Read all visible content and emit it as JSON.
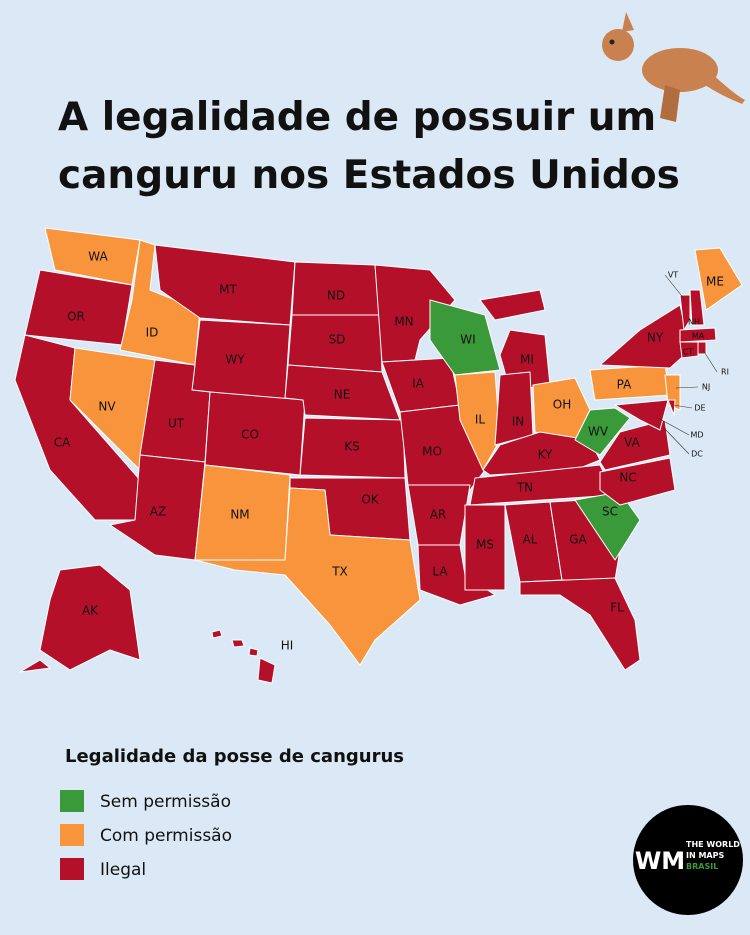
{
  "title": [
    "A legalidade de possuir um",
    "canguru nos Estados Unidos"
  ],
  "legend": {
    "title": "Legalidade da posse de cangurus",
    "items": [
      {
        "label": "Sem permissão",
        "color": "#3a9a3a"
      },
      {
        "label": "Com permissão",
        "color": "#f7943c"
      },
      {
        "label": "Ilegal",
        "color": "#b5102a"
      }
    ]
  },
  "states": [
    {
      "label": "WA",
      "category": 1
    },
    {
      "label": "OR",
      "category": 2
    },
    {
      "label": "CA",
      "category": 2
    },
    {
      "label": "NV",
      "category": 1
    },
    {
      "label": "ID",
      "category": 1
    },
    {
      "label": "MT",
      "category": 2
    },
    {
      "label": "WY",
      "category": 2
    },
    {
      "label": "UT",
      "category": 2
    },
    {
      "label": "CO",
      "category": 2
    },
    {
      "label": "AZ",
      "category": 2
    },
    {
      "label": "NM",
      "category": 1
    },
    {
      "label": "ND",
      "category": 2
    },
    {
      "label": "SD",
      "category": 2
    },
    {
      "label": "NE",
      "category": 2
    },
    {
      "label": "KS",
      "category": 2
    },
    {
      "label": "OK",
      "category": 2
    },
    {
      "label": "TX",
      "category": 1
    },
    {
      "label": "MN",
      "category": 2
    },
    {
      "label": "IA",
      "category": 2
    },
    {
      "label": "MO",
      "category": 2
    },
    {
      "label": "AR",
      "category": 2
    },
    {
      "label": "LA",
      "category": 2
    },
    {
      "label": "WI",
      "category": 0
    },
    {
      "label": "IL",
      "category": 1
    },
    {
      "label": "MI",
      "category": 2
    },
    {
      "label": "IN",
      "category": 2
    },
    {
      "label": "OH",
      "category": 1
    },
    {
      "label": "KY",
      "category": 2
    },
    {
      "label": "TN",
      "category": 2
    },
    {
      "label": "MS",
      "category": 2
    },
    {
      "label": "AL",
      "category": 2
    },
    {
      "label": "GA",
      "category": 2
    },
    {
      "label": "FL",
      "category": 2
    },
    {
      "label": "SC",
      "category": 0
    },
    {
      "label": "NC",
      "category": 2
    },
    {
      "label": "VA",
      "category": 2
    },
    {
      "label": "WV",
      "category": 0
    },
    {
      "label": "PA",
      "category": 1
    },
    {
      "label": "NY",
      "category": 2
    },
    {
      "label": "NJ",
      "category": 1
    },
    {
      "label": "MD",
      "category": 2
    },
    {
      "label": "DE",
      "category": 2
    },
    {
      "label": "VT",
      "category": 2
    },
    {
      "label": "NH",
      "category": 2
    },
    {
      "label": "ME",
      "category": 1
    },
    {
      "label": "MA",
      "category": 2
    },
    {
      "label": "CT",
      "category": 2
    },
    {
      "label": "RI",
      "category": 2
    },
    {
      "label": "AK",
      "category": 2
    },
    {
      "label": "HI",
      "category": 2
    },
    {
      "label": "DC",
      "category": 2
    }
  ],
  "logo": {
    "mark": "WM",
    "lines": [
      "THE WORLD",
      "IN MAPS",
      "BRASIL"
    ]
  }
}
